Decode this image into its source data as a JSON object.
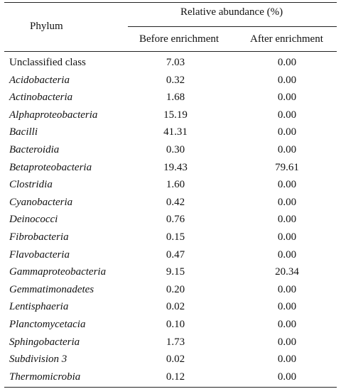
{
  "table": {
    "header": {
      "phylum": "Phylum",
      "group": "Relative abundance (%)",
      "before": "Before enrichment",
      "after": "After enrichment"
    },
    "rows": [
      {
        "name": "Unclassified class",
        "italic": false,
        "before": "7.03",
        "after": "0.00"
      },
      {
        "name": "Acidobacteria",
        "italic": true,
        "before": "0.32",
        "after": "0.00"
      },
      {
        "name": "Actinobacteria",
        "italic": true,
        "before": "1.68",
        "after": "0.00"
      },
      {
        "name": "Alphaproteobacteria",
        "italic": true,
        "before": "15.19",
        "after": "0.00"
      },
      {
        "name": "Bacilli",
        "italic": true,
        "before": "41.31",
        "after": "0.00"
      },
      {
        "name": "Bacteroidia",
        "italic": true,
        "before": "0.30",
        "after": "0.00"
      },
      {
        "name": "Betaproteobacteria",
        "italic": true,
        "before": "19.43",
        "after": "79.61"
      },
      {
        "name": "Clostridia",
        "italic": true,
        "before": "1.60",
        "after": "0.00"
      },
      {
        "name": "Cyanobacteria",
        "italic": true,
        "before": "0.42",
        "after": "0.00"
      },
      {
        "name": "Deinococci",
        "italic": true,
        "before": "0.76",
        "after": "0.00"
      },
      {
        "name": "Fibrobacteria",
        "italic": true,
        "before": "0.15",
        "after": "0.00"
      },
      {
        "name": "Flavobacteria",
        "italic": true,
        "before": "0.47",
        "after": "0.00"
      },
      {
        "name": "Gammaproteobacteria",
        "italic": true,
        "before": "9.15",
        "after": "20.34"
      },
      {
        "name": "Gemmatimonadetes",
        "italic": true,
        "before": "0.20",
        "after": "0.00"
      },
      {
        "name": "Lentisphaeria",
        "italic": true,
        "before": "0.02",
        "after": "0.00"
      },
      {
        "name": "Planctomycetacia",
        "italic": true,
        "before": "0.10",
        "after": "0.00"
      },
      {
        "name": "Sphingobacteria",
        "italic": true,
        "before": "1.73",
        "after": "0.00"
      },
      {
        "name": "Subdivision 3",
        "italic": true,
        "before": "0.02",
        "after": "0.00"
      },
      {
        "name": "Thermomicrobia",
        "italic": true,
        "before": "0.12",
        "after": "0.00"
      }
    ]
  }
}
